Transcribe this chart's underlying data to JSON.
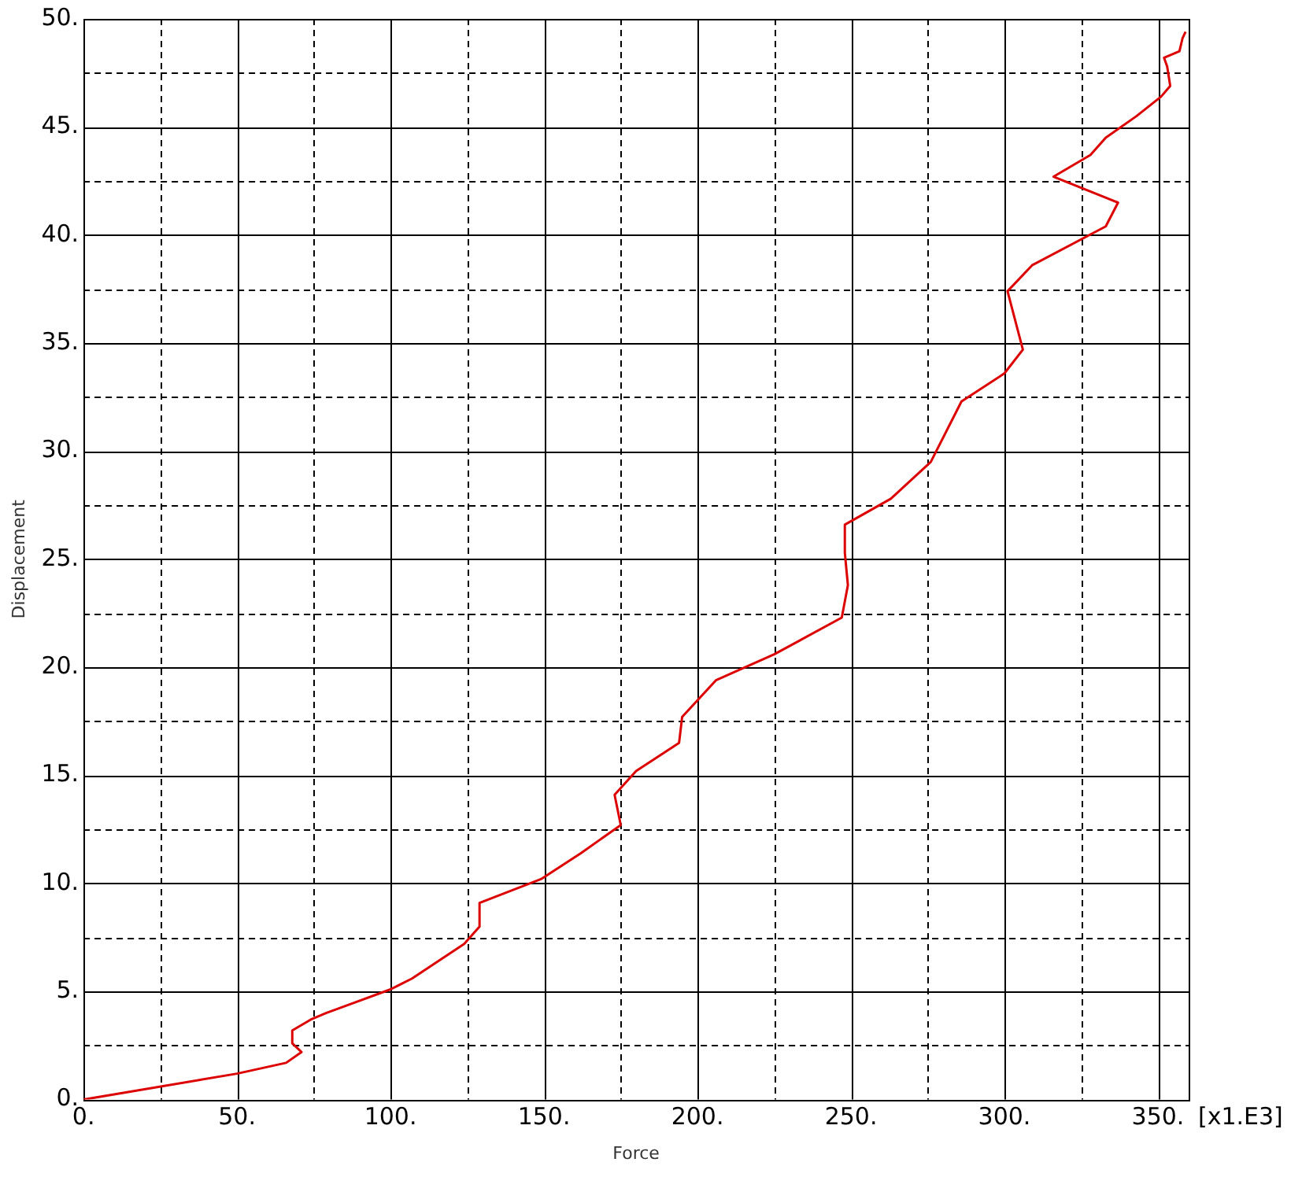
{
  "chart_data": {
    "type": "line",
    "xlabel": "Force",
    "ylabel": "Displacement",
    "annotations": [
      "[x1.E3]"
    ],
    "xlim": [
      0,
      360
    ],
    "ylim": [
      0,
      50
    ],
    "xticks": [
      {
        "value": 0,
        "label": "0."
      },
      {
        "value": 25,
        "label": null
      },
      {
        "value": 50,
        "label": "50."
      },
      {
        "value": 75,
        "label": null
      },
      {
        "value": 100,
        "label": "100."
      },
      {
        "value": 125,
        "label": null
      },
      {
        "value": 150,
        "label": "150."
      },
      {
        "value": 175,
        "label": null
      },
      {
        "value": 200,
        "label": "200."
      },
      {
        "value": 225,
        "label": null
      },
      {
        "value": 250,
        "label": "250."
      },
      {
        "value": 275,
        "label": null
      },
      {
        "value": 300,
        "label": "300."
      },
      {
        "value": 325,
        "label": null
      },
      {
        "value": 350,
        "label": "350."
      }
    ],
    "yticks": [
      {
        "value": 0,
        "label": "0."
      },
      {
        "value": 2.5,
        "label": null
      },
      {
        "value": 5,
        "label": "5."
      },
      {
        "value": 7.5,
        "label": null
      },
      {
        "value": 10,
        "label": "10."
      },
      {
        "value": 12.5,
        "label": null
      },
      {
        "value": 15,
        "label": "15."
      },
      {
        "value": 17.5,
        "label": null
      },
      {
        "value": 20,
        "label": "20."
      },
      {
        "value": 22.5,
        "label": null
      },
      {
        "value": 25,
        "label": "25."
      },
      {
        "value": 27.5,
        "label": null
      },
      {
        "value": 30,
        "label": "30."
      },
      {
        "value": 32.5,
        "label": null
      },
      {
        "value": 35,
        "label": "35."
      },
      {
        "value": 37.5,
        "label": null
      },
      {
        "value": 40,
        "label": "40."
      },
      {
        "value": 42.5,
        "label": null
      },
      {
        "value": 45,
        "label": "45."
      },
      {
        "value": 47.5,
        "label": null
      },
      {
        "value": 50,
        "label": "50."
      }
    ],
    "grid": true,
    "legend": false,
    "marker": "none",
    "line_style": "solid",
    "series": [
      {
        "color": "#dd0000",
        "x": [
          0,
          50,
          66,
          71,
          68,
          68,
          74,
          79,
          100,
          107,
          124,
          129,
          129,
          149,
          162,
          175,
          173,
          180,
          194,
          195,
          206,
          225,
          247,
          249,
          248,
          248,
          263,
          276,
          286,
          300,
          306,
          301,
          309,
          333,
          337,
          316,
          328,
          333,
          343,
          351,
          354,
          353,
          352,
          357,
          358,
          359
        ],
        "values": [
          0,
          1.2,
          1.7,
          2.2,
          2.6,
          3.2,
          3.7,
          4.0,
          5.1,
          5.6,
          7.2,
          8.0,
          9.1,
          10.2,
          11.4,
          12.7,
          14.1,
          15.2,
          16.5,
          17.7,
          19.4,
          20.6,
          22.3,
          23.8,
          25.3,
          26.6,
          27.8,
          29.5,
          32.3,
          33.6,
          34.7,
          37.4,
          38.6,
          40.4,
          41.5,
          42.7,
          43.7,
          44.5,
          45.5,
          46.4,
          46.9,
          47.8,
          48.2,
          48.5,
          49.1,
          49.4
        ]
      }
    ]
  }
}
